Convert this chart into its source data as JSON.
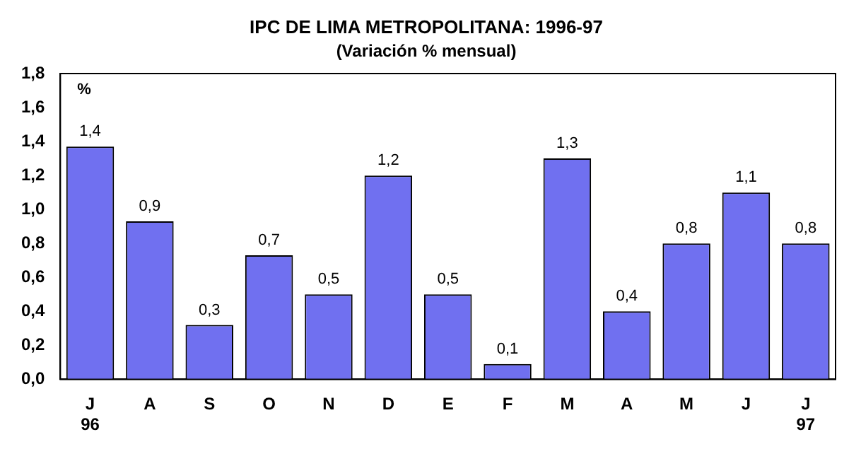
{
  "chart_data": {
    "type": "bar",
    "title": "IPC DE LIMA METROPOLITANA: 1996-97",
    "subtitle": "(Variación % mensual)",
    "ylabel": "%",
    "categories": [
      "J\n96",
      "A",
      "S",
      "O",
      "N",
      "D",
      "E",
      "F",
      "M",
      "A",
      "M",
      "J",
      "J\n97"
    ],
    "values": [
      1.37,
      0.93,
      0.32,
      0.73,
      0.5,
      1.2,
      0.5,
      0.09,
      1.3,
      0.4,
      0.8,
      1.1,
      0.8
    ],
    "value_labels": [
      "1,4",
      "0,9",
      "0,3",
      "0,7",
      "0,5",
      "1,2",
      "0,5",
      "0,1",
      "1,3",
      "0,4",
      "0,8",
      "1,1",
      "0,8"
    ],
    "color": "#7070f0",
    "ylim": [
      0,
      1.8
    ],
    "yticks": [
      {
        "value": 0,
        "label": "0,0"
      },
      {
        "value": 0.2,
        "label": "0,2"
      },
      {
        "value": 0.4,
        "label": "0,4"
      },
      {
        "value": 0.6,
        "label": "0,6"
      },
      {
        "value": 0.8,
        "label": "0,8"
      },
      {
        "value": 1,
        "label": "1,0"
      },
      {
        "value": 1.2,
        "label": "1,2"
      },
      {
        "value": 1.4,
        "label": "1,4"
      },
      {
        "value": 1.6,
        "label": "1,6"
      },
      {
        "value": 1.8,
        "label": "1,8"
      }
    ],
    "grid": false,
    "legend": false
  }
}
